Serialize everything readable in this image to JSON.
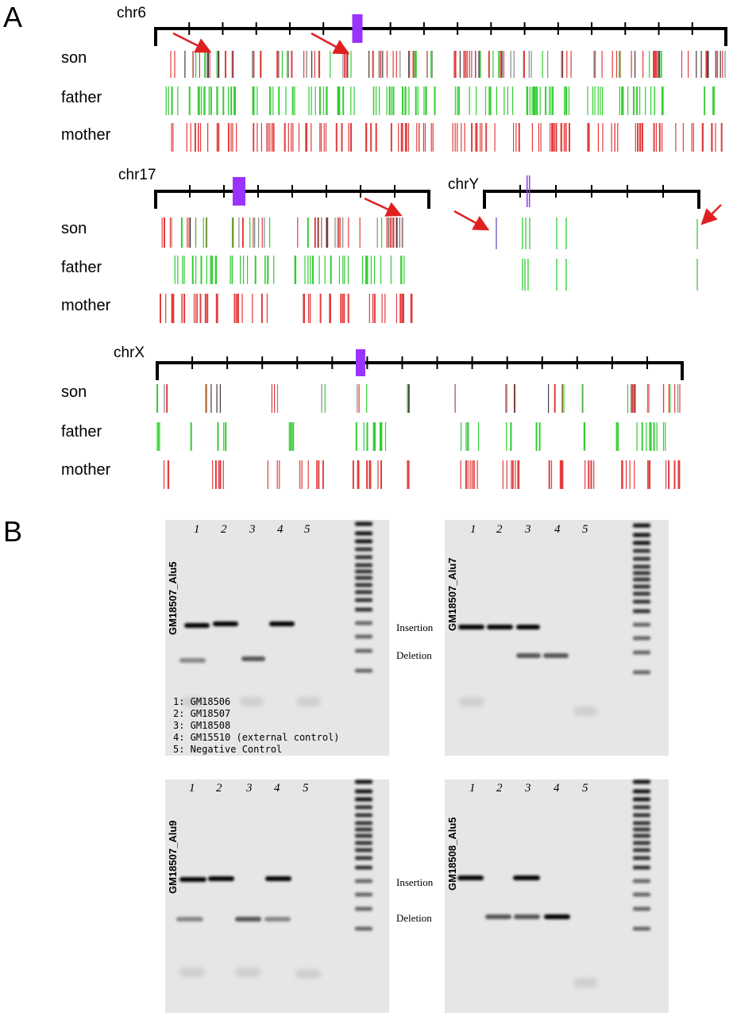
{
  "panel_a": {
    "label": "A",
    "rows": [
      "son",
      "father",
      "mother"
    ],
    "chromosomes": [
      {
        "name": "chr6"
      },
      {
        "name": "chr17"
      },
      {
        "name": "chrY"
      },
      {
        "name": "chrX"
      }
    ]
  },
  "panel_b": {
    "label": "B",
    "lane_numbers": [
      "1",
      "2",
      "3",
      "4",
      "5"
    ],
    "gels": [
      {
        "title": "GM18507_Alu5"
      },
      {
        "title": "GM18507_Alu7"
      },
      {
        "title": "GM18507_Alu9"
      },
      {
        "title": "GM18508_Alu5"
      }
    ],
    "band_labels_top": {
      "insertion": "Insertion",
      "deletion": "Deletion"
    },
    "band_labels_bottom": {
      "insertion": "Insertion",
      "deletion": "Deletion"
    },
    "legend": [
      "1: GM18506",
      "2: GM18507",
      "3: GM18508",
      "4: GM15510 (external control)",
      "5: Negative Control"
    ]
  },
  "colors": {
    "son_mixed": "#888888",
    "father": "#33cc33",
    "mother": "#e23c3c",
    "centromere": "#9933ff",
    "arrow": "#e02020",
    "gel_background": "#e8e8e8"
  }
}
